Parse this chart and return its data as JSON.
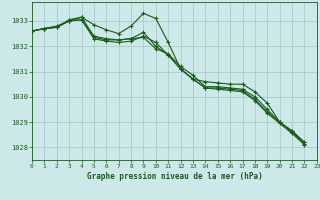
{
  "background_color": "#cce8e8",
  "grid_color": "#aacccc",
  "line_color": "#1a5c1a",
  "title": "Graphe pression niveau de la mer (hPa)",
  "xlim": [
    0,
    23
  ],
  "ylim": [
    1027.5,
    1033.75
  ],
  "yticks": [
    1028,
    1029,
    1030,
    1031,
    1032,
    1033
  ],
  "xticks": [
    0,
    1,
    2,
    3,
    4,
    5,
    6,
    7,
    8,
    9,
    10,
    11,
    12,
    13,
    14,
    15,
    16,
    17,
    18,
    19,
    20,
    21,
    22,
    23
  ],
  "series": [
    [
      1032.6,
      1032.7,
      1032.8,
      1033.0,
      1033.15,
      1032.85,
      1032.65,
      1032.5,
      1032.8,
      1033.3,
      1033.1,
      1032.15,
      1031.1,
      1030.7,
      1030.6,
      1030.55,
      1030.5,
      1030.5,
      1030.2,
      1029.75,
      1029.0,
      1028.65,
      1028.2
    ],
    [
      1032.6,
      1032.7,
      1032.75,
      1033.0,
      1033.05,
      1032.35,
      1032.25,
      1032.25,
      1032.3,
      1032.35,
      1031.9,
      1031.7,
      1031.2,
      1030.85,
      1030.4,
      1030.4,
      1030.35,
      1030.3,
      1030.0,
      1029.5,
      1029.0,
      1028.65,
      1028.2
    ],
    [
      1032.6,
      1032.7,
      1032.75,
      1033.0,
      1033.05,
      1032.3,
      1032.2,
      1032.15,
      1032.2,
      1032.4,
      1032.15,
      1031.65,
      1031.1,
      1030.7,
      1030.35,
      1030.35,
      1030.3,
      1030.25,
      1029.9,
      1029.4,
      1029.0,
      1028.6,
      1028.15
    ],
    [
      1032.6,
      1032.7,
      1032.75,
      1033.05,
      1033.15,
      1032.4,
      1032.3,
      1032.25,
      1032.3,
      1032.55,
      1032.0,
      1031.65,
      1031.1,
      1030.7,
      1030.35,
      1030.3,
      1030.25,
      1030.2,
      1029.85,
      1029.35,
      1028.95,
      1028.55,
      1028.1
    ]
  ]
}
